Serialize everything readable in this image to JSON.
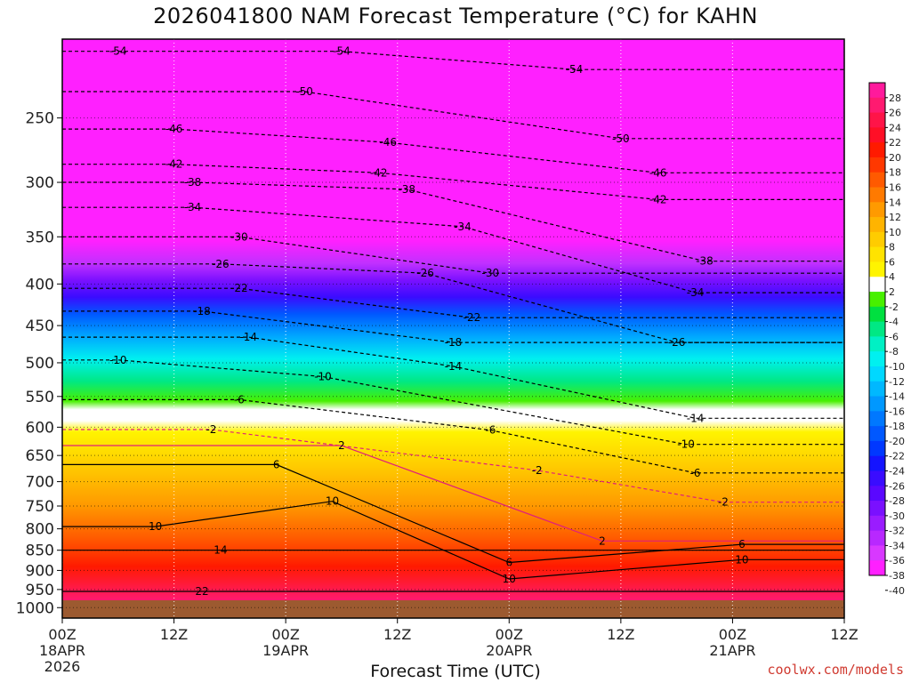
{
  "chart_data": {
    "type": "heatmap",
    "title": "2026041800 NAM Forecast Temperature (°C) for KAHN",
    "xlabel": "Forecast Time (UTC)",
    "ylabel": "",
    "credit": "coolwx.com/models",
    "x_ticks": [
      {
        "hours": 0,
        "label": "00Z",
        "date": "18APR",
        "year": "2026"
      },
      {
        "hours": 12,
        "label": "12Z"
      },
      {
        "hours": 24,
        "label": "00Z",
        "date": "19APR"
      },
      {
        "hours": 36,
        "label": "12Z"
      },
      {
        "hours": 48,
        "label": "00Z",
        "date": "20APR"
      },
      {
        "hours": 60,
        "label": "12Z"
      },
      {
        "hours": 72,
        "label": "00Z",
        "date": "21APR"
      },
      {
        "hours": 84,
        "label": "12Z"
      }
    ],
    "x_range_hours": [
      0,
      84
    ],
    "y_ticks": [
      250,
      300,
      350,
      400,
      450,
      500,
      550,
      600,
      650,
      700,
      750,
      800,
      850,
      900,
      950,
      1000
    ],
    "y_range_hpa": [
      200,
      1030
    ],
    "y_scale": "log-pressure",
    "colorbar": {
      "labels": [
        28,
        26,
        24,
        22,
        20,
        18,
        16,
        14,
        12,
        10,
        8,
        6,
        4,
        2,
        -2,
        -4,
        -6,
        -8,
        -10,
        -12,
        -14,
        -16,
        -18,
        -20,
        -22,
        -24,
        -26,
        -28,
        -30,
        -32,
        -34,
        -36,
        -38,
        -40
      ],
      "bounds": [
        30,
        28,
        26,
        24,
        22,
        20,
        18,
        16,
        14,
        12,
        10,
        8,
        6,
        4,
        2,
        -2,
        -4,
        -6,
        -8,
        -10,
        -12,
        -14,
        -16,
        -18,
        -20,
        -22,
        -24,
        -26,
        -28,
        -30,
        -32,
        -34,
        -36,
        -38,
        -40,
        -42
      ],
      "colors": [
        "#ff1a9c",
        "#ff1a70",
        "#ff1448",
        "#ff0f26",
        "#ff1a00",
        "#ff3800",
        "#ff5a00",
        "#ff7a00",
        "#ff9a00",
        "#ffb400",
        "#ffcc00",
        "#ffe300",
        "#fff400",
        "#ffffff",
        "#48f000",
        "#00e040",
        "#00e884",
        "#00f0c4",
        "#00f0f0",
        "#00d8ff",
        "#00b8ff",
        "#0098ff",
        "#0078ff",
        "#0058ff",
        "#0038ff",
        "#1414ff",
        "#3a0cff",
        "#5a08ff",
        "#7a10ff",
        "#9a1cff",
        "#b828ff",
        "#d838ff",
        "#ff20ff"
      ]
    },
    "contour_labels": [
      {
        "value": -54,
        "hours": 6,
        "hpa": 207
      },
      {
        "value": -54,
        "hours": 30,
        "hpa": 207
      },
      {
        "value": -54,
        "hours": 55,
        "hpa": 218
      },
      {
        "value": -50,
        "hours": 26,
        "hpa": 232
      },
      {
        "value": -50,
        "hours": 60,
        "hpa": 265
      },
      {
        "value": -46,
        "hours": 12,
        "hpa": 258
      },
      {
        "value": -46,
        "hours": 35,
        "hpa": 268
      },
      {
        "value": -46,
        "hours": 64,
        "hpa": 292
      },
      {
        "value": -42,
        "hours": 12,
        "hpa": 285
      },
      {
        "value": -42,
        "hours": 34,
        "hpa": 292
      },
      {
        "value": -42,
        "hours": 64,
        "hpa": 315
      },
      {
        "value": -38,
        "hours": 14,
        "hpa": 300
      },
      {
        "value": -38,
        "hours": 37,
        "hpa": 306
      },
      {
        "value": -38,
        "hours": 69,
        "hpa": 375
      },
      {
        "value": -34,
        "hours": 14,
        "hpa": 322
      },
      {
        "value": -34,
        "hours": 43,
        "hpa": 340
      },
      {
        "value": -34,
        "hours": 68,
        "hpa": 410
      },
      {
        "value": -30,
        "hours": 19,
        "hpa": 350
      },
      {
        "value": -30,
        "hours": 46,
        "hpa": 388
      },
      {
        "value": -26,
        "hours": 17,
        "hpa": 378
      },
      {
        "value": -26,
        "hours": 39,
        "hpa": 388
      },
      {
        "value": -26,
        "hours": 66,
        "hpa": 472
      },
      {
        "value": -22,
        "hours": 19,
        "hpa": 405
      },
      {
        "value": -22,
        "hours": 44,
        "hpa": 440
      },
      {
        "value": -18,
        "hours": 15,
        "hpa": 432
      },
      {
        "value": -18,
        "hours": 42,
        "hpa": 472
      },
      {
        "value": -14,
        "hours": 20,
        "hpa": 465
      },
      {
        "value": -14,
        "hours": 42,
        "hpa": 505
      },
      {
        "value": -14,
        "hours": 68,
        "hpa": 585
      },
      {
        "value": -10,
        "hours": 6,
        "hpa": 496
      },
      {
        "value": -10,
        "hours": 28,
        "hpa": 520
      },
      {
        "value": -10,
        "hours": 67,
        "hpa": 630
      },
      {
        "value": -6,
        "hours": 19,
        "hpa": 555
      },
      {
        "value": -6,
        "hours": 46,
        "hpa": 605
      },
      {
        "value": -6,
        "hours": 68,
        "hpa": 683
      },
      {
        "value": -2,
        "hours": 16,
        "hpa": 604
      },
      {
        "value": -2,
        "hours": 51,
        "hpa": 678
      },
      {
        "value": -2,
        "hours": 71,
        "hpa": 742
      },
      {
        "value": 2,
        "hours": 30,
        "hpa": 632
      },
      {
        "value": 2,
        "hours": 58,
        "hpa": 828
      },
      {
        "value": 6,
        "hours": 23,
        "hpa": 667
      },
      {
        "value": 6,
        "hours": 48,
        "hpa": 880
      },
      {
        "value": 6,
        "hours": 73,
        "hpa": 836
      },
      {
        "value": 10,
        "hours": 10,
        "hpa": 795
      },
      {
        "value": 10,
        "hours": 29,
        "hpa": 740
      },
      {
        "value": 10,
        "hours": 48,
        "hpa": 922
      },
      {
        "value": 10,
        "hours": 73,
        "hpa": 873
      },
      {
        "value": 14,
        "hours": 17,
        "hpa": 850
      },
      {
        "value": 22,
        "hours": 15,
        "hpa": 955
      }
    ]
  }
}
